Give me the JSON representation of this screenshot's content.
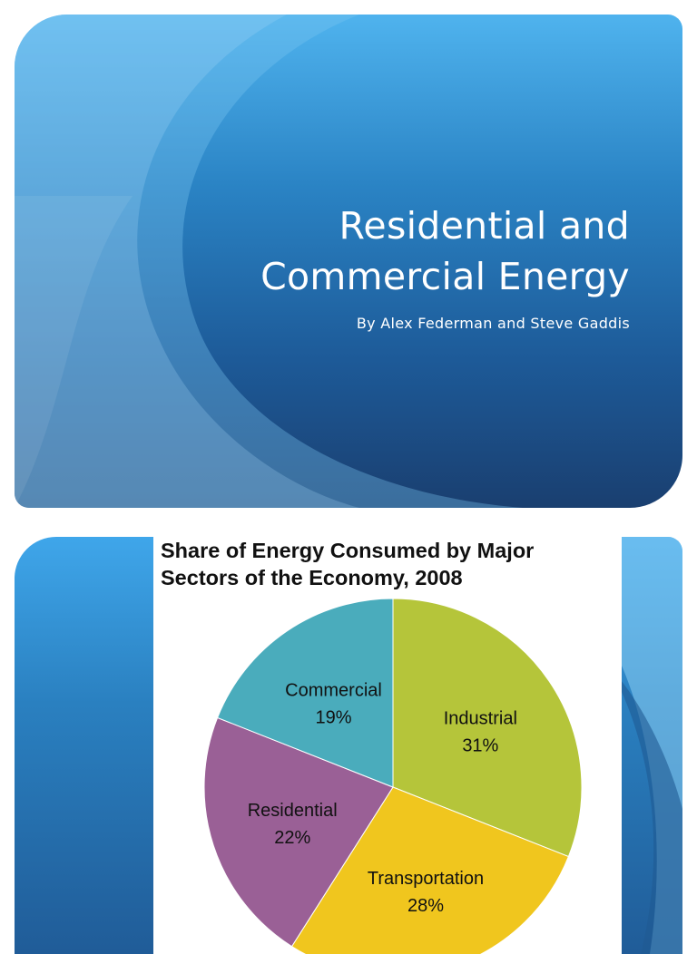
{
  "slide1": {
    "title_lines": [
      "Residential and",
      "Commercial Energy"
    ],
    "subtitle": "By Alex Federman and Steve Gaddis",
    "colors": {
      "bg_top": "#4fb3ee",
      "bg_bottom": "#1a3f70",
      "text": "#ffffff"
    }
  },
  "slide2": {
    "chart_title_lines": [
      "Share of Energy Consumed by Major",
      "Sectors of the Economy, 2008"
    ]
  },
  "chart_data": {
    "type": "pie",
    "title": "Share of Energy Consumed by Major Sectors of the Economy, 2008",
    "start": "12 o'clock",
    "direction": "clockwise",
    "slices": [
      {
        "label": "Industrial",
        "value": 31,
        "value_label": "31%",
        "color": "#b5c53a"
      },
      {
        "label": "Transportation",
        "value": 28,
        "value_label": "28%",
        "color": "#f0c61e"
      },
      {
        "label": "Residential",
        "value": 22,
        "value_label": "22%",
        "color": "#9a6096"
      },
      {
        "label": "Commercial",
        "value": 19,
        "value_label": "19%",
        "color": "#4aacbc"
      }
    ]
  }
}
